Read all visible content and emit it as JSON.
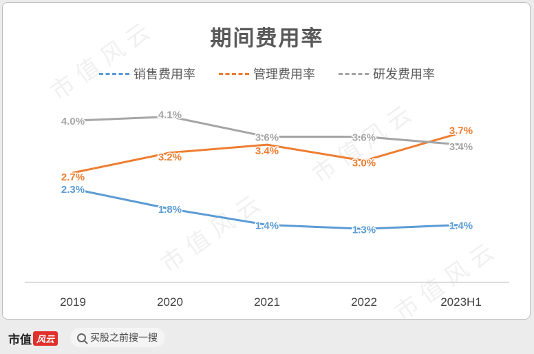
{
  "footer": {
    "brand_text": "市值",
    "brand_mark": "风云",
    "search_label": "买股之前搜一搜"
  },
  "watermark_text": "市值风云",
  "chart_data": {
    "type": "line",
    "title": "期间费用率",
    "categories": [
      "2019",
      "2020",
      "2021",
      "2022",
      "2023H1"
    ],
    "ylim": [
      0,
      5
    ],
    "grid": false,
    "legend_position": "top-center",
    "series": [
      {
        "name": "销售费用率",
        "color": "#5b9bd5",
        "values": [
          2.3,
          1.8,
          1.4,
          1.3,
          1.4
        ],
        "labels": [
          "2.3%",
          "1.8%",
          "1.4%",
          "1.3%",
          "1.4%"
        ]
      },
      {
        "name": "管理费用率",
        "color": "#ed7d31",
        "values": [
          2.7,
          3.2,
          3.4,
          3.0,
          3.7
        ],
        "labels": [
          "2.7%",
          "3.2%",
          "3.4%",
          "3.0%",
          "3.7%"
        ]
      },
      {
        "name": "研发费用率",
        "color": "#a5a5a5",
        "values": [
          4.0,
          4.1,
          3.6,
          3.6,
          3.4
        ],
        "labels": [
          "4.0%",
          "4.1%",
          "3.6%",
          "3.6%",
          "3.4%"
        ]
      }
    ]
  }
}
